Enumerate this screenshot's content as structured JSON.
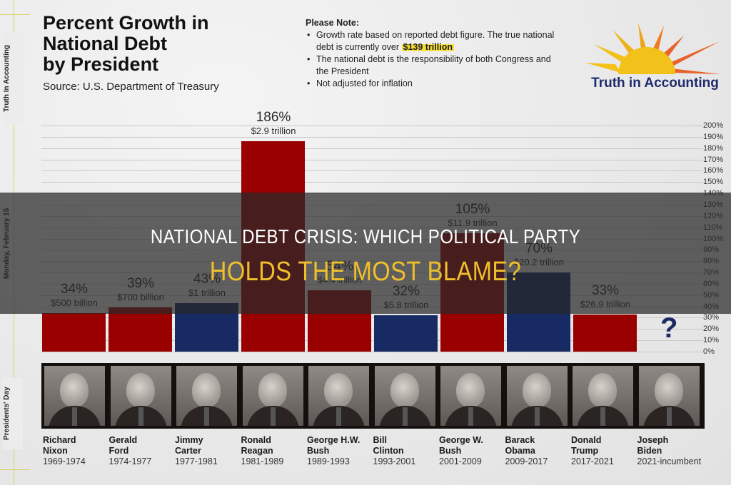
{
  "side": {
    "top_label": "Truth In Accounting",
    "middle_label": "Monday, February 15",
    "bottom_label": "Presidents' Day"
  },
  "header": {
    "title": "Percent Growth in National Debt by President",
    "title_lines": [
      "Percent Growth in",
      "National Debt",
      "by President"
    ],
    "source": "Source: U.S. Department of Treasury"
  },
  "note": {
    "heading": "Please Note:",
    "items": [
      {
        "text": "Growth rate based on reported debt figure. The true national debt is currently over ",
        "highlight": "$139 trillion"
      },
      {
        "text": "The national debt is the responsibility of both Congress and the President"
      },
      {
        "text": "Not adjusted for inflation"
      }
    ]
  },
  "logo": {
    "text": "Truth in Accounting",
    "colors": {
      "sun": "#f2c21b",
      "rays_orange": "#e8632a",
      "text": "#1f2b6b"
    }
  },
  "colors": {
    "republican": "#990000",
    "democrat": "#172a63",
    "overlay_title": "#ffffff",
    "overlay_subtitle": "#f0c02a"
  },
  "overlay": {
    "line1": "NATIONAL DEBT CRISIS: WHICH POLITICAL PARTY",
    "line2": "HOLDS THE MOST BLAME?"
  },
  "unknown_marker": "?",
  "presidents": [
    {
      "first": "Richard",
      "last": "Nixon",
      "term": "1969-1974",
      "pct": "34%",
      "amount": "$500 billion",
      "party": "R"
    },
    {
      "first": "Gerald",
      "last": "Ford",
      "term": "1974-1977",
      "pct": "39%",
      "amount": "$700 billion",
      "party": "R"
    },
    {
      "first": "Jimmy",
      "last": "Carter",
      "term": "1977-1981",
      "pct": "43%",
      "amount": "$1 trillion",
      "party": "D"
    },
    {
      "first": "Ronald",
      "last": "Reagan",
      "term": "1981-1989",
      "pct": "186%",
      "amount": "$2.9 trillion",
      "party": "R"
    },
    {
      "first": "George H.W.",
      "last": "Bush",
      "term": "1989-1993",
      "pct": "54%",
      "amount": "$4.4 trillion",
      "party": "R"
    },
    {
      "first": "Bill",
      "last": "Clinton",
      "term": "1993-2001",
      "pct": "32%",
      "amount": "$5.8 trillion",
      "party": "D"
    },
    {
      "first": "George W.",
      "last": "Bush",
      "term": "2001-2009",
      "pct": "105%",
      "amount": "$11.9 trillion",
      "party": "R"
    },
    {
      "first": "Barack",
      "last": "Obama",
      "term": "2009-2017",
      "pct": "70%",
      "amount": "$20.2 trillion",
      "party": "D"
    },
    {
      "first": "Donald",
      "last": "Trump",
      "term": "2017-2021",
      "pct": "33%",
      "amount": "$26.9 trillion",
      "party": "R"
    },
    {
      "first": "Joseph",
      "last": "Biden",
      "term": "2021-incumbent",
      "pct": "?",
      "amount": "",
      "party": "D"
    }
  ],
  "chart_data": {
    "type": "bar",
    "title": "Percent Growth in National Debt by President",
    "subtitle": "Source: U.S. Department of Treasury",
    "categories": [
      "Richard Nixon (1969-1974)",
      "Gerald Ford (1974-1977)",
      "Jimmy Carter (1977-1981)",
      "Ronald Reagan (1981-1989)",
      "George H.W. Bush (1989-1993)",
      "Bill Clinton (1993-2001)",
      "George W. Bush (2001-2009)",
      "Barack Obama (2009-2017)",
      "Donald Trump (2017-2021)",
      "Joseph Biden (2021-incumbent)"
    ],
    "values": [
      34,
      39,
      43,
      186,
      54,
      32,
      105,
      70,
      33,
      null
    ],
    "data_labels": [
      "$500 billion",
      "$700 billion",
      "$1 trillion",
      "$2.9 trillion",
      "$4.4 trillion",
      "$5.8 trillion",
      "$11.9 trillion",
      "$20.2 trillion",
      "$26.9 trillion",
      "?"
    ],
    "bar_colors": [
      "#990000",
      "#990000",
      "#172a63",
      "#990000",
      "#990000",
      "#172a63",
      "#990000",
      "#172a63",
      "#990000",
      null
    ],
    "xlabel": "",
    "ylabel": "",
    "ylim": [
      0,
      200
    ],
    "yticks": [
      "0%",
      "10%",
      "20%",
      "30%",
      "40%",
      "50%",
      "60%",
      "70%",
      "80%",
      "90%",
      "100%",
      "110%",
      "120%",
      "130%",
      "140%",
      "150%",
      "160%",
      "170%",
      "180%",
      "190%",
      "200%"
    ],
    "grid": true,
    "y_axis_position": "right",
    "legend": "none (red = Republican, blue = Democrat)"
  }
}
